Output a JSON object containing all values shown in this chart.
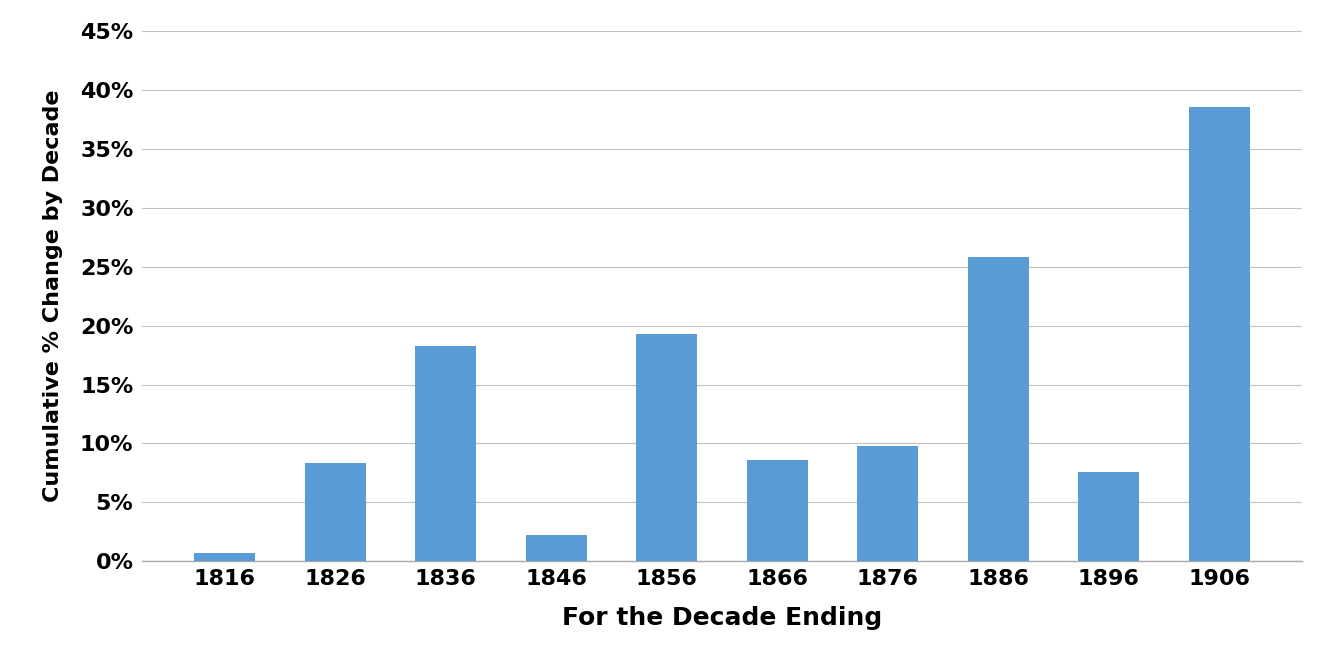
{
  "categories": [
    "1816",
    "1826",
    "1836",
    "1846",
    "1856",
    "1866",
    "1876",
    "1886",
    "1896",
    "1906"
  ],
  "values": [
    0.007,
    0.083,
    0.183,
    0.022,
    0.193,
    0.086,
    0.098,
    0.258,
    0.076,
    0.386
  ],
  "bar_color": "#5b9bd5",
  "xlabel": "For the Decade Ending",
  "ylabel": "Cumulative % Change by Decade",
  "ylim": [
    0,
    0.45
  ],
  "yticks": [
    0.0,
    0.05,
    0.1,
    0.15,
    0.2,
    0.25,
    0.3,
    0.35,
    0.4,
    0.45
  ],
  "ytick_labels": [
    "0%",
    "5%",
    "10%",
    "15%",
    "20%",
    "25%",
    "30%",
    "35%",
    "40%",
    "45%"
  ],
  "xlabel_fontsize": 18,
  "ylabel_fontsize": 16,
  "tick_fontsize": 16,
  "background_color": "#ffffff",
  "grid_color": "#c0c0c0",
  "bar_width": 0.55
}
